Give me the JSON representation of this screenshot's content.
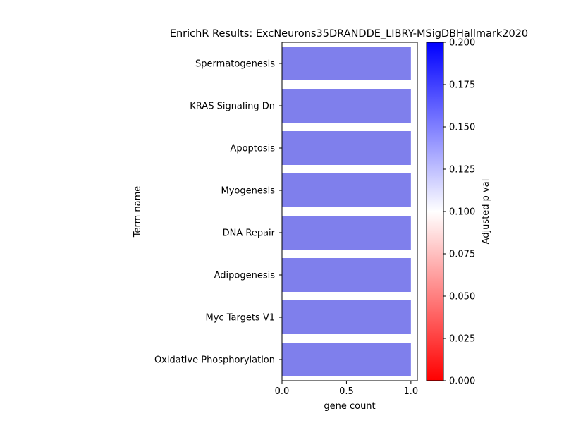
{
  "chart_data": {
    "type": "bar",
    "orientation": "horizontal",
    "title": "EnrichR Results: ExcNeurons35DRANDDE_LIBRY-MSigDBHallmark2020",
    "xlabel": "gene count",
    "ylabel": "Term name",
    "xlim": [
      0,
      1.05
    ],
    "xticks": [
      "0.0",
      "0.5",
      "1.0"
    ],
    "categories": [
      "Spermatogenesis",
      "KRAS Signaling Dn",
      "Apoptosis",
      "Myogenesis",
      "DNA Repair",
      "Adipogenesis",
      "Myc Targets V1",
      "Oxidative Phosphorylation"
    ],
    "values": [
      1,
      1,
      1,
      1,
      1,
      1,
      1,
      1
    ],
    "bar_color": "#7f7fec",
    "colorbar": {
      "label": "Adjusted p val",
      "range": [
        0,
        0.2
      ],
      "ticks": [
        "0.000",
        "0.025",
        "0.050",
        "0.075",
        "0.100",
        "0.125",
        "0.150",
        "0.175",
        "0.200"
      ],
      "colormap": [
        "#ff0000",
        "#ffffff",
        "#0000ff"
      ]
    },
    "grid": false,
    "legend": "none"
  }
}
